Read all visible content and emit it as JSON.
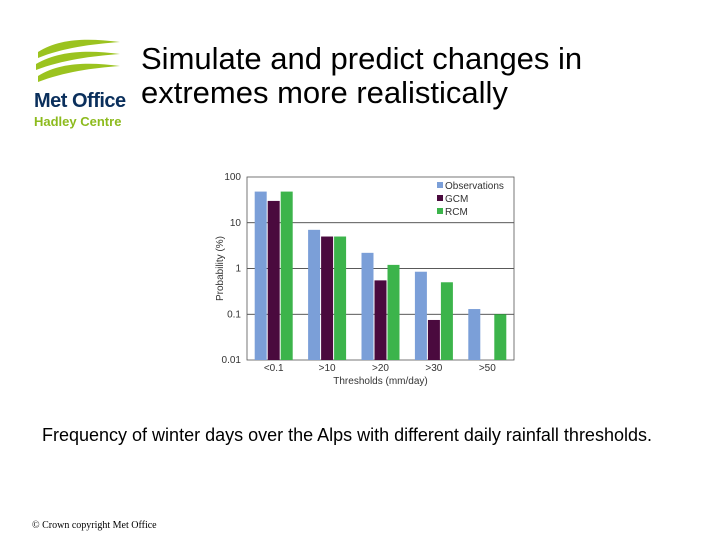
{
  "logo": {
    "name": "Met Office",
    "sub": "Hadley Centre",
    "colors": {
      "swoosh": "#9bc31f",
      "name": "#0a2f5c",
      "sub": "#8dbb1e"
    }
  },
  "slide": {
    "title": "Simulate and predict changes in extremes more realistically",
    "caption": "Frequency of winter days over the Alps with different daily rainfall thresholds.",
    "copyright": "© Crown copyright  Met Office"
  },
  "chart_data": {
    "type": "bar",
    "xlabel": "Thresholds (mm/day)",
    "ylabel": "Probability (%)",
    "yscale": "log",
    "ylim": [
      0.01,
      100
    ],
    "yticks": [
      "100",
      "10",
      "1",
      "0.1",
      "0.01"
    ],
    "categories": [
      "<0.1",
      ">10",
      ">20",
      ">30",
      ">50"
    ],
    "legend_position": "top-right",
    "grid": "horizontal at decades",
    "series": [
      {
        "name": "Observations",
        "color": "#7b9fd8",
        "values": [
          48,
          7,
          2.2,
          0.85,
          0.13
        ]
      },
      {
        "name": "GCM",
        "color": "#4a0a3e",
        "values": [
          30,
          5,
          0.55,
          0.075,
          null
        ]
      },
      {
        "name": "RCM",
        "color": "#3cb44b",
        "values": [
          48,
          5,
          1.2,
          0.5,
          0.1
        ]
      }
    ]
  }
}
